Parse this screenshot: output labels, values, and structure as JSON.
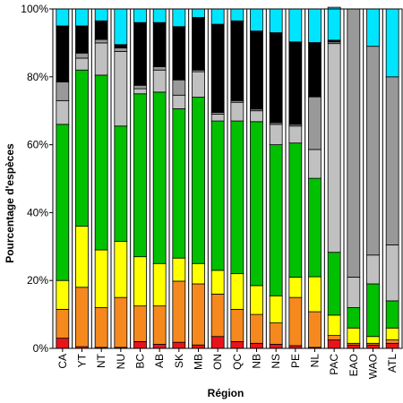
{
  "chart_data": {
    "type": "bar",
    "stacked": true,
    "title": "",
    "xlabel": "Région",
    "ylabel": "Pourcentage d'espèces",
    "ylim": [
      0,
      100
    ],
    "yticks": [
      "0%",
      "20%",
      "40%",
      "60%",
      "80%",
      "100%"
    ],
    "grid": false,
    "legend": "none",
    "categories": [
      "CA",
      "YT",
      "NT",
      "NU",
      "BC",
      "AB",
      "SK",
      "MB",
      "ON",
      "QC",
      "NB",
      "NS",
      "PE",
      "NL",
      "PAC",
      "EAO",
      "WAO",
      "ATL"
    ],
    "series": [
      {
        "color": "#e8141a",
        "values": [
          3.0,
          0.5,
          0.3,
          0.3,
          2.0,
          1.2,
          1.8,
          1.0,
          3.5,
          2.0,
          1.5,
          1.2,
          0.8,
          0.3,
          2.5,
          1.0,
          1.0,
          1.5
        ]
      },
      {
        "color": "#f5891e",
        "values": [
          8.5,
          17.5,
          11.7,
          14.7,
          10.5,
          11.3,
          18.0,
          18.0,
          12.5,
          9.5,
          8.5,
          6.3,
          14.2,
          10.5,
          1.3,
          0.5,
          0.5,
          1.0
        ]
      },
      {
        "color": "#ffff00",
        "values": [
          8.5,
          18.0,
          17.0,
          16.5,
          14.5,
          12.5,
          6.8,
          6.0,
          7.0,
          10.5,
          8.5,
          8.0,
          6.0,
          10.3,
          6.0,
          4.5,
          2.0,
          3.5
        ]
      },
      {
        "color": "#00c000",
        "values": [
          46.0,
          46.0,
          51.5,
          34.0,
          48.0,
          50.5,
          44.0,
          49.0,
          44.0,
          45.0,
          48.3,
          44.5,
          39.5,
          29.0,
          18.5,
          6.0,
          15.5,
          8.0
        ]
      },
      {
        "color": "#c0c0c0",
        "values": [
          7.0,
          3.5,
          9.5,
          22.0,
          1.5,
          6.5,
          4.0,
          7.5,
          2.0,
          5.5,
          3.2,
          6.0,
          5.0,
          8.5,
          61.5,
          9.0,
          8.5,
          16.5
        ]
      },
      {
        "color": "#999999",
        "values": [
          5.5,
          1.5,
          1.0,
          1.0,
          1.0,
          1.0,
          4.5,
          0.5,
          0.5,
          0.5,
          0.5,
          0.5,
          0.5,
          15.5,
          0.5,
          79.0,
          61.5,
          49.5
        ]
      },
      {
        "color": "#000000",
        "values": [
          16.5,
          8.0,
          5.5,
          1.0,
          18.5,
          13.0,
          15.7,
          15.5,
          26.0,
          23.5,
          23.0,
          26.5,
          24.3,
          16.0,
          0.5,
          0.0,
          0.0,
          0.0
        ]
      },
      {
        "color": "#00e5ff",
        "values": [
          5.0,
          5.0,
          3.5,
          10.5,
          4.0,
          4.0,
          5.2,
          2.5,
          4.5,
          3.5,
          6.5,
          7.0,
          9.7,
          9.9,
          9.7,
          0.0,
          11.0,
          20.0
        ]
      }
    ]
  }
}
